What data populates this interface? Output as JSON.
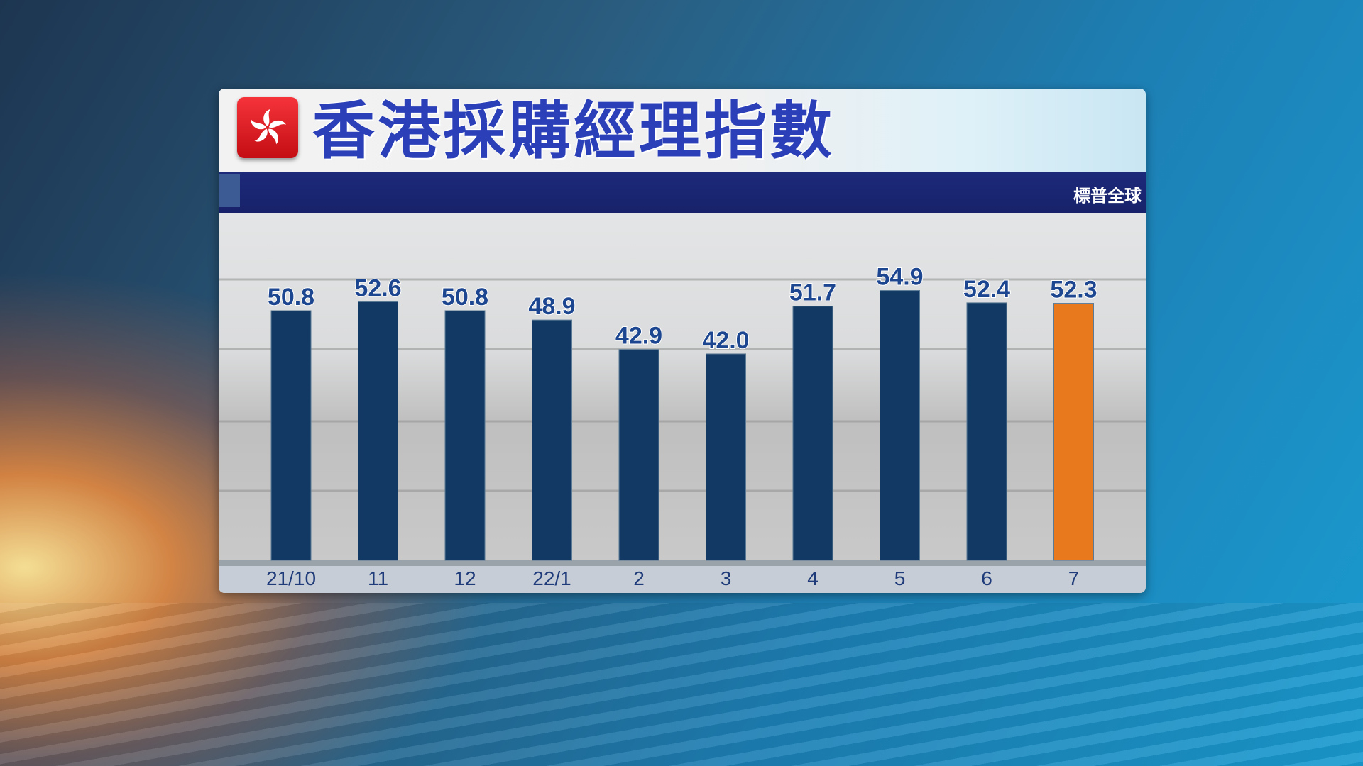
{
  "header": {
    "title": "香港採購經理指數",
    "source": "標普全球",
    "flag_icon": "hong-kong-flag-icon"
  },
  "chart_data": {
    "type": "bar",
    "title": "香港採購經理指數",
    "categories": [
      "21/10",
      "11",
      "12",
      "22/1",
      "2",
      "3",
      "4",
      "5",
      "6",
      "7"
    ],
    "values": [
      50.8,
      52.6,
      50.8,
      48.9,
      42.9,
      42.0,
      51.7,
      54.9,
      52.4,
      52.3
    ],
    "ylim": [
      0,
      60
    ],
    "grid": true,
    "colors": {
      "default": "#123963",
      "highlight": "#e8791c",
      "label": "#1d4690"
    },
    "highlight_index": 9
  }
}
